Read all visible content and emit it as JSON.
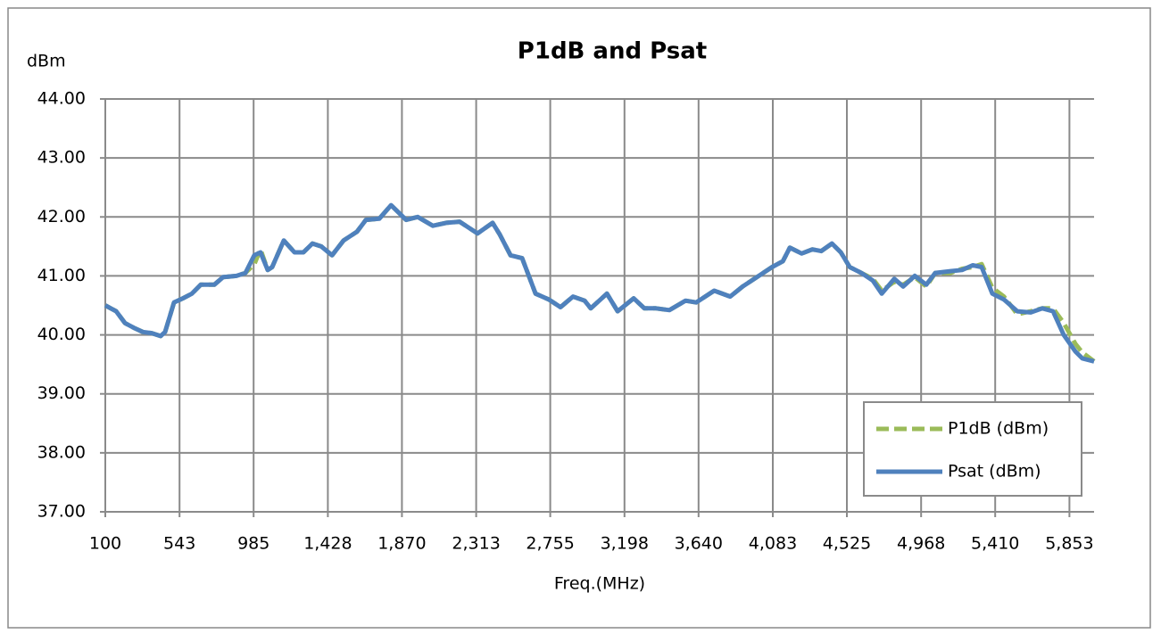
{
  "chart_data": {
    "type": "line",
    "title": "P1dB and Psat",
    "y_label": "dBm",
    "x_label": "Freq.(MHz)",
    "x": [
      100,
      165,
      217,
      270,
      324,
      377,
      430,
      457,
      510,
      563,
      617,
      670,
      750,
      803,
      883,
      936,
      989,
      1026,
      1069,
      1096,
      1165,
      1229,
      1282,
      1336,
      1389,
      1453,
      1522,
      1602,
      1655,
      1735,
      1805,
      1895,
      1964,
      2054,
      2134,
      2214,
      2321,
      2411,
      2454,
      2518,
      2587,
      2667,
      2747,
      2816,
      2891,
      2960,
      2997,
      3093,
      3157,
      3253,
      3317,
      3386,
      3466,
      3562,
      3626,
      3733,
      3829,
      3903,
      3999,
      4079,
      4143,
      4185,
      4255,
      4319,
      4372,
      4436,
      4489,
      4542,
      4611,
      4680,
      4733,
      4808,
      4861,
      4930,
      4999,
      5052,
      5143,
      5212,
      5276,
      5329,
      5393,
      5462,
      5542,
      5622,
      5691,
      5755,
      5819,
      5888,
      5930,
      6000
    ],
    "series": [
      {
        "name": "P1dB (dBm)",
        "color": "#9bbb59",
        "dashed": true,
        "values": [
          40.5,
          40.4,
          40.2,
          40.12,
          40.05,
          40.03,
          39.98,
          40.05,
          40.55,
          40.62,
          40.7,
          40.85,
          40.85,
          40.98,
          41.0,
          41.05,
          41.2,
          41.45,
          41.1,
          41.15,
          41.6,
          41.4,
          41.4,
          41.55,
          41.5,
          41.35,
          41.6,
          41.75,
          41.95,
          41.97,
          42.2,
          41.95,
          42.0,
          41.85,
          41.9,
          41.92,
          41.72,
          41.9,
          41.7,
          41.35,
          41.3,
          40.7,
          40.6,
          40.47,
          40.65,
          40.58,
          40.45,
          40.7,
          40.4,
          40.62,
          40.45,
          40.45,
          40.42,
          40.58,
          40.55,
          40.75,
          40.65,
          40.82,
          41.0,
          41.15,
          41.25,
          41.48,
          41.38,
          41.45,
          41.42,
          41.55,
          41.4,
          41.15,
          41.05,
          40.95,
          40.75,
          40.9,
          40.85,
          40.98,
          40.82,
          41.05,
          41.05,
          41.12,
          41.15,
          41.2,
          40.8,
          40.65,
          40.35,
          40.4,
          40.45,
          40.45,
          40.2,
          39.85,
          39.7,
          39.55
        ]
      },
      {
        "name": "Psat (dBm)",
        "color": "#4f81bd",
        "dashed": false,
        "values": [
          40.5,
          40.4,
          40.2,
          40.12,
          40.05,
          40.03,
          39.98,
          40.05,
          40.55,
          40.62,
          40.7,
          40.85,
          40.85,
          40.98,
          41.0,
          41.05,
          41.35,
          41.4,
          41.1,
          41.15,
          41.6,
          41.4,
          41.4,
          41.55,
          41.5,
          41.35,
          41.6,
          41.75,
          41.95,
          41.97,
          42.2,
          41.95,
          42.0,
          41.85,
          41.9,
          41.92,
          41.72,
          41.9,
          41.7,
          41.35,
          41.3,
          40.7,
          40.6,
          40.47,
          40.65,
          40.58,
          40.45,
          40.7,
          40.4,
          40.62,
          40.45,
          40.45,
          40.42,
          40.58,
          40.55,
          40.75,
          40.65,
          40.82,
          41.0,
          41.15,
          41.25,
          41.48,
          41.38,
          41.45,
          41.42,
          41.55,
          41.4,
          41.15,
          41.05,
          40.92,
          40.7,
          40.95,
          40.82,
          41.0,
          40.85,
          41.05,
          41.08,
          41.1,
          41.18,
          41.15,
          40.7,
          40.6,
          40.4,
          40.38,
          40.45,
          40.4,
          40.0,
          39.72,
          39.6,
          39.55
        ]
      }
    ],
    "xlim": [
      100,
      6000
    ],
    "xticks": [
      100,
      543,
      985,
      {
        "value": 1428,
        "label": "1,428"
      },
      {
        "value": 1870,
        "label": "1,870"
      },
      {
        "value": 2313,
        "label": "2,313"
      },
      {
        "value": 2755,
        "label": "2,755"
      },
      {
        "value": 3198,
        "label": "3,198"
      },
      {
        "value": 3640,
        "label": "3,640"
      },
      {
        "value": 4083,
        "label": "4,083"
      },
      {
        "value": 4525,
        "label": "4,525"
      },
      {
        "value": 4968,
        "label": "4,968"
      },
      {
        "value": 5410,
        "label": "5,410"
      },
      {
        "value": 5853,
        "label": "5,853"
      }
    ],
    "ylim": [
      37,
      44
    ],
    "yticks": [
      {
        "value": 37,
        "label": "37.00"
      },
      {
        "value": 38,
        "label": "38.00"
      },
      {
        "value": 39,
        "label": "39.00"
      },
      {
        "value": 40,
        "label": "40.00"
      },
      {
        "value": 41,
        "label": "41.00"
      },
      {
        "value": 42,
        "label": "42.00"
      },
      {
        "value": 43,
        "label": "43.00"
      },
      {
        "value": 44,
        "label": "44.00"
      }
    ],
    "grid": true,
    "legend": "lower right"
  }
}
